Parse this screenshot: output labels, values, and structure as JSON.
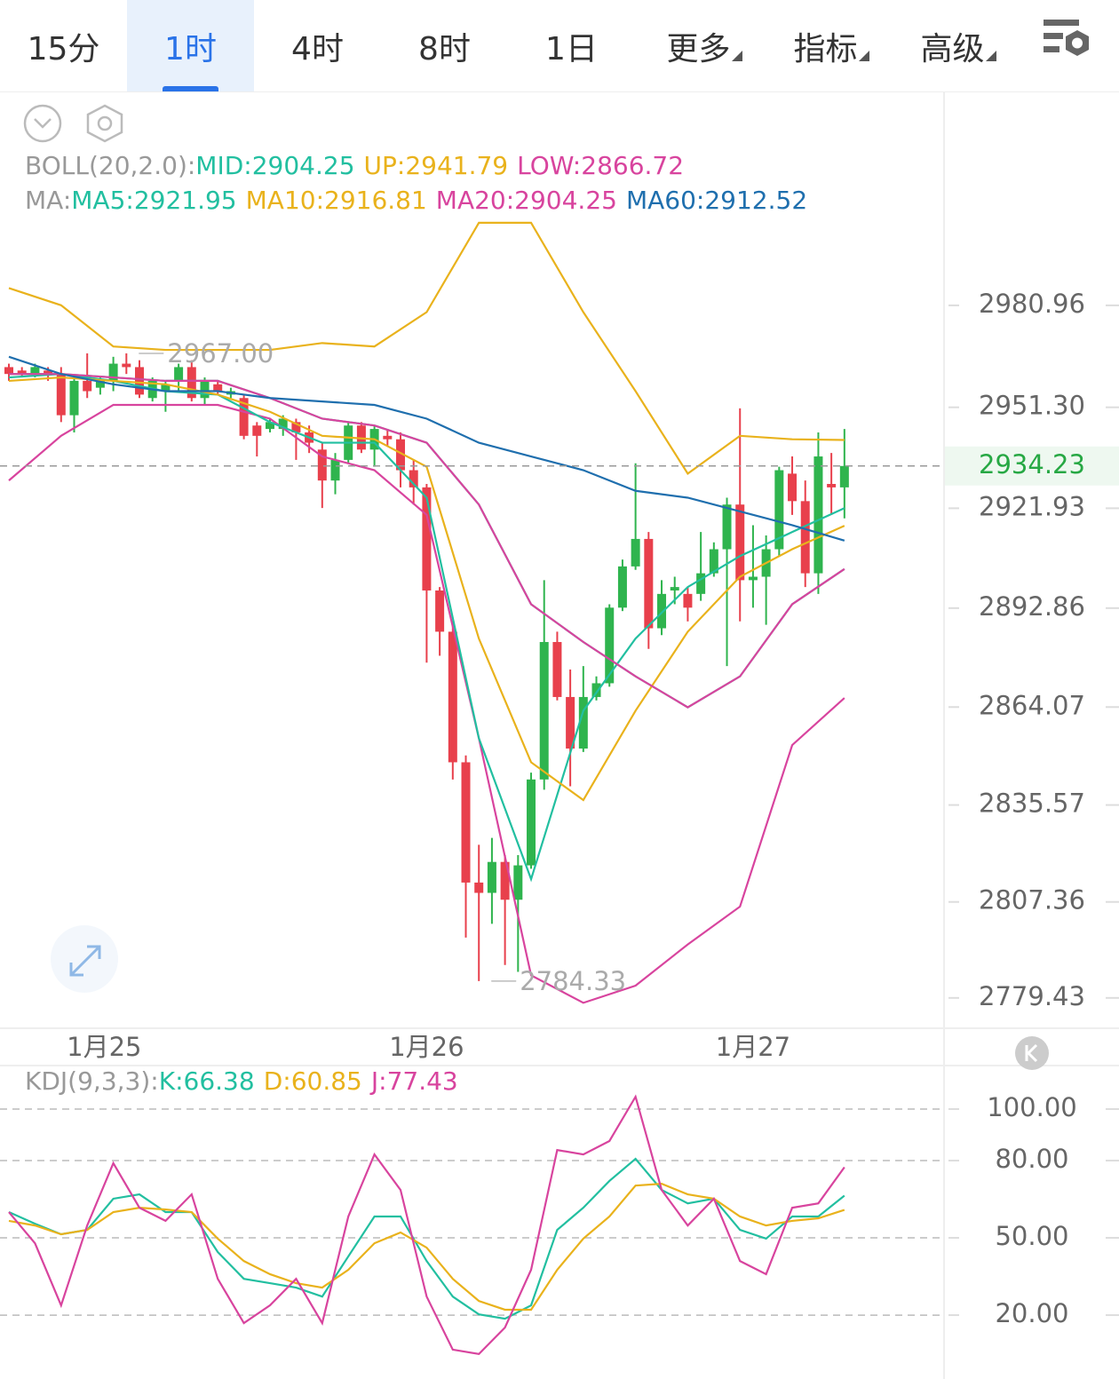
{
  "tabs": [
    {
      "label": "15分"
    },
    {
      "label": "1时",
      "active": true
    },
    {
      "label": "4时"
    },
    {
      "label": "8时"
    },
    {
      "label": "1日"
    },
    {
      "label": "更多",
      "dropdown": true
    },
    {
      "label": "指标",
      "dropdown": true
    },
    {
      "label": "高级",
      "dropdown": true
    }
  ],
  "chart_data": [
    {
      "type": "candlestick",
      "boll_label": "BOLL(20,2.0):",
      "ma_label": "MA:",
      "up_color": "#e8404c",
      "down_color": "#2fb44e",
      "open": [
        2963,
        2962,
        2961,
        2962,
        2961,
        2949,
        2959,
        2957,
        2959,
        2964,
        2963,
        2954,
        2956,
        2959,
        2963,
        2954,
        2958,
        2955,
        2954,
        2946,
        2945,
        2945,
        2947,
        2944,
        2939,
        2930,
        2936,
        2946,
        2939,
        2943,
        2942,
        2933,
        2928,
        2898,
        2886,
        2848,
        2813,
        2810,
        2819,
        2808,
        2818,
        2843,
        2883,
        2867,
        2852,
        2867,
        2871,
        2893,
        2905,
        2913,
        2887,
        2898,
        2897,
        2897,
        2903,
        2910,
        2923,
        2901,
        2902,
        2910,
        2932,
        2924,
        2903,
        2929,
        2928
      ],
      "high": [
        2964,
        2963,
        2964,
        2963,
        2963,
        2961,
        2967,
        2960,
        2966,
        2967,
        2965,
        2960,
        2959,
        2964,
        2965,
        2960,
        2959,
        2957,
        2955,
        2947,
        2948,
        2949,
        2948,
        2946,
        2941,
        2938,
        2947,
        2947,
        2946,
        2945,
        2944,
        2936,
        2929,
        2899,
        2889,
        2850,
        2824,
        2826,
        2821,
        2821,
        2845,
        2901,
        2886,
        2875,
        2876,
        2873,
        2894,
        2907,
        2935,
        2915,
        2901,
        2902,
        2899,
        2915,
        2912,
        2925,
        2951,
        2917,
        2914,
        2934,
        2937,
        2930,
        2944,
        2938,
        2945
      ],
      "low": [
        2959,
        2960,
        2960,
        2959,
        2947,
        2944,
        2954,
        2955,
        2956,
        2961,
        2954,
        2953,
        2950,
        2956,
        2953,
        2952,
        2955,
        2954,
        2942,
        2937,
        2944,
        2943,
        2936,
        2938,
        2922,
        2926,
        2935,
        2938,
        2934,
        2940,
        2928,
        2923,
        2877,
        2879,
        2843,
        2797,
        2784.33,
        2801,
        2789,
        2787,
        2817,
        2840,
        2866,
        2841,
        2851,
        2866,
        2870,
        2892,
        2904,
        2881,
        2885,
        2894,
        2889,
        2895,
        2902,
        2876,
        2889,
        2893,
        2888,
        2908,
        2920,
        2899,
        2897,
        2920,
        2919
      ],
      "close": [
        2961,
        2961,
        2963,
        2961,
        2949,
        2959,
        2956,
        2959,
        2964,
        2963,
        2955,
        2959,
        2958,
        2963,
        2954,
        2959,
        2956,
        2956,
        2943,
        2943,
        2947,
        2948,
        2944,
        2941,
        2930,
        2936,
        2946,
        2939,
        2945,
        2942,
        2933,
        2928,
        2898,
        2886,
        2848,
        2813,
        2810,
        2819,
        2808,
        2818,
        2843,
        2883,
        2867,
        2852,
        2867,
        2871,
        2893,
        2905,
        2913,
        2887,
        2897,
        2899,
        2893,
        2903,
        2910,
        2923,
        2901,
        2902,
        2910,
        2933,
        2924,
        2903,
        2937,
        2928,
        2934.23
      ],
      "line_x": [
        0,
        4,
        8,
        12,
        16,
        20,
        24,
        28,
        32,
        36,
        40,
        44,
        48,
        52,
        56,
        60,
        64
      ],
      "boll_series": [
        {
          "name": "MID:",
          "color": "#22bfa0",
          "values": [
            2961,
            2961,
            2960,
            2959,
            2959,
            2954,
            2948,
            2946,
            2941,
            2923,
            2894,
            2883,
            2873,
            2864,
            2873,
            2894,
            2904.25
          ]
        },
        {
          "name": "UP:",
          "color": "#e9b21c",
          "values": [
            2986,
            2981,
            2969,
            2968,
            2968,
            2968,
            2970,
            2969,
            2979,
            3005,
            3005,
            2979,
            2956,
            2932,
            2943,
            2942,
            2941.79
          ]
        },
        {
          "name": "LOW:",
          "color": "#d8449e",
          "values": [
            2930,
            2943,
            2952,
            2952,
            2952,
            2948,
            2937,
            2933,
            2920,
            2855,
            2786,
            2778,
            2783,
            2795,
            2806,
            2853,
            2866.72
          ]
        }
      ],
      "ma_series": [
        {
          "name": "MA5:",
          "color": "#22bfa0",
          "values": [
            2960,
            2961,
            2959,
            2956,
            2955,
            2947,
            2941,
            2941,
            2925,
            2855,
            2814,
            2863,
            2884,
            2899,
            2908,
            2915,
            2921.95
          ]
        },
        {
          "name": "MA10:",
          "color": "#e9b21c",
          "values": [
            2959,
            2960,
            2959,
            2958,
            2955,
            2950,
            2943,
            2942,
            2934,
            2884,
            2848,
            2837,
            2863,
            2886,
            2902,
            2910,
            2916.81
          ]
        },
        {
          "name": "MA20:",
          "color": "#d8449e",
          "values": [
            2961,
            2961,
            2960,
            2959,
            2959,
            2954,
            2948,
            2946,
            2941,
            2923,
            2894,
            2883,
            2873,
            2864,
            2873,
            2894,
            2904.25
          ]
        },
        {
          "name": "MA60:",
          "color": "#1f6fae",
          "values": [
            2966,
            2961,
            2958,
            2956,
            2956,
            2954,
            2953,
            2952,
            2948,
            2941,
            2937,
            2933,
            2927,
            2925,
            2921,
            2917,
            2912.52
          ]
        }
      ],
      "current_price": 2934.23,
      "annotations": [
        {
          "label": "2967.00",
          "value": 2967,
          "x": 9
        },
        {
          "label": "2784.33",
          "value": 2784.33,
          "x": 36
        }
      ],
      "xlim": [
        -0.68,
        71.63
      ],
      "ylim": [
        2770.6,
        3042.7
      ],
      "xticks": [
        {
          "value": 7.3,
          "label": "1月25"
        },
        {
          "value": 32,
          "label": "1月26"
        },
        {
          "value": 57,
          "label": "1月27"
        }
      ],
      "yticks": [
        {
          "value": 2980.96,
          "label": "2980.96"
        },
        {
          "value": 2951.3,
          "label": "2951.30"
        },
        {
          "value": 2921.93,
          "label": "2921.93"
        },
        {
          "value": 2892.86,
          "label": "2892.86"
        },
        {
          "value": 2864.07,
          "label": "2864.07"
        },
        {
          "value": 2835.57,
          "label": "2835.57"
        },
        {
          "value": 2807.36,
          "label": "2807.36"
        },
        {
          "value": 2779.43,
          "label": "2779.43"
        }
      ]
    },
    {
      "type": "line",
      "label": "KDJ(9,3,3):",
      "x": [
        0,
        2,
        4,
        6,
        8,
        10,
        12,
        14,
        16,
        18,
        20,
        22,
        24,
        26,
        28,
        30,
        32,
        34,
        36,
        38,
        40,
        42,
        44,
        46,
        48,
        50,
        52,
        54,
        56,
        58,
        60,
        62,
        64
      ],
      "series": [
        {
          "name": "K:",
          "color": "#22bfa0",
          "values": [
            60.0,
            55.5,
            51.4,
            53.1,
            65.2,
            66.9,
            60.0,
            60.0,
            44.5,
            34.1,
            32.4,
            30.7,
            27.2,
            42.8,
            58.3,
            58.3,
            41.0,
            27.2,
            20.3,
            18.6,
            23.8,
            53.1,
            61.7,
            72.1,
            80.7,
            68.6,
            63.4,
            65.2,
            53.1,
            49.7,
            58.3,
            58.3,
            66.38
          ]
        },
        {
          "name": "D:",
          "color": "#e9b21c",
          "values": [
            56.6,
            54.8,
            51.4,
            53.1,
            60.0,
            61.7,
            61.0,
            60.0,
            49.7,
            41.0,
            35.9,
            32.4,
            30.7,
            37.6,
            47.9,
            52.1,
            46.2,
            34.1,
            25.5,
            22.1,
            22.1,
            37.6,
            49.7,
            58.3,
            70.3,
            71.0,
            66.9,
            65.2,
            58.3,
            54.8,
            56.6,
            57.6,
            60.85
          ]
        },
        {
          "name": "J:",
          "color": "#d8449e",
          "values": [
            60.0,
            47.9,
            23.8,
            54.8,
            79.0,
            61.7,
            56.6,
            66.9,
            34.1,
            16.9,
            23.8,
            34.1,
            16.9,
            58.3,
            82.4,
            68.6,
            27.2,
            6.6,
            4.9,
            15.2,
            37.6,
            84.1,
            82.4,
            87.6,
            104.8,
            68.6,
            54.8,
            65.2,
            41.0,
            35.9,
            61.7,
            63.4,
            77.43
          ]
        }
      ],
      "xlim": [
        -0.68,
        71.63
      ],
      "ylim": [
        -4.8,
        116.9
      ],
      "yticks": [
        {
          "value": 100,
          "label": "100.00"
        },
        {
          "value": 80,
          "label": "80.00"
        },
        {
          "value": 50,
          "label": "50.00"
        },
        {
          "value": 20,
          "label": "20.00"
        }
      ]
    }
  ]
}
